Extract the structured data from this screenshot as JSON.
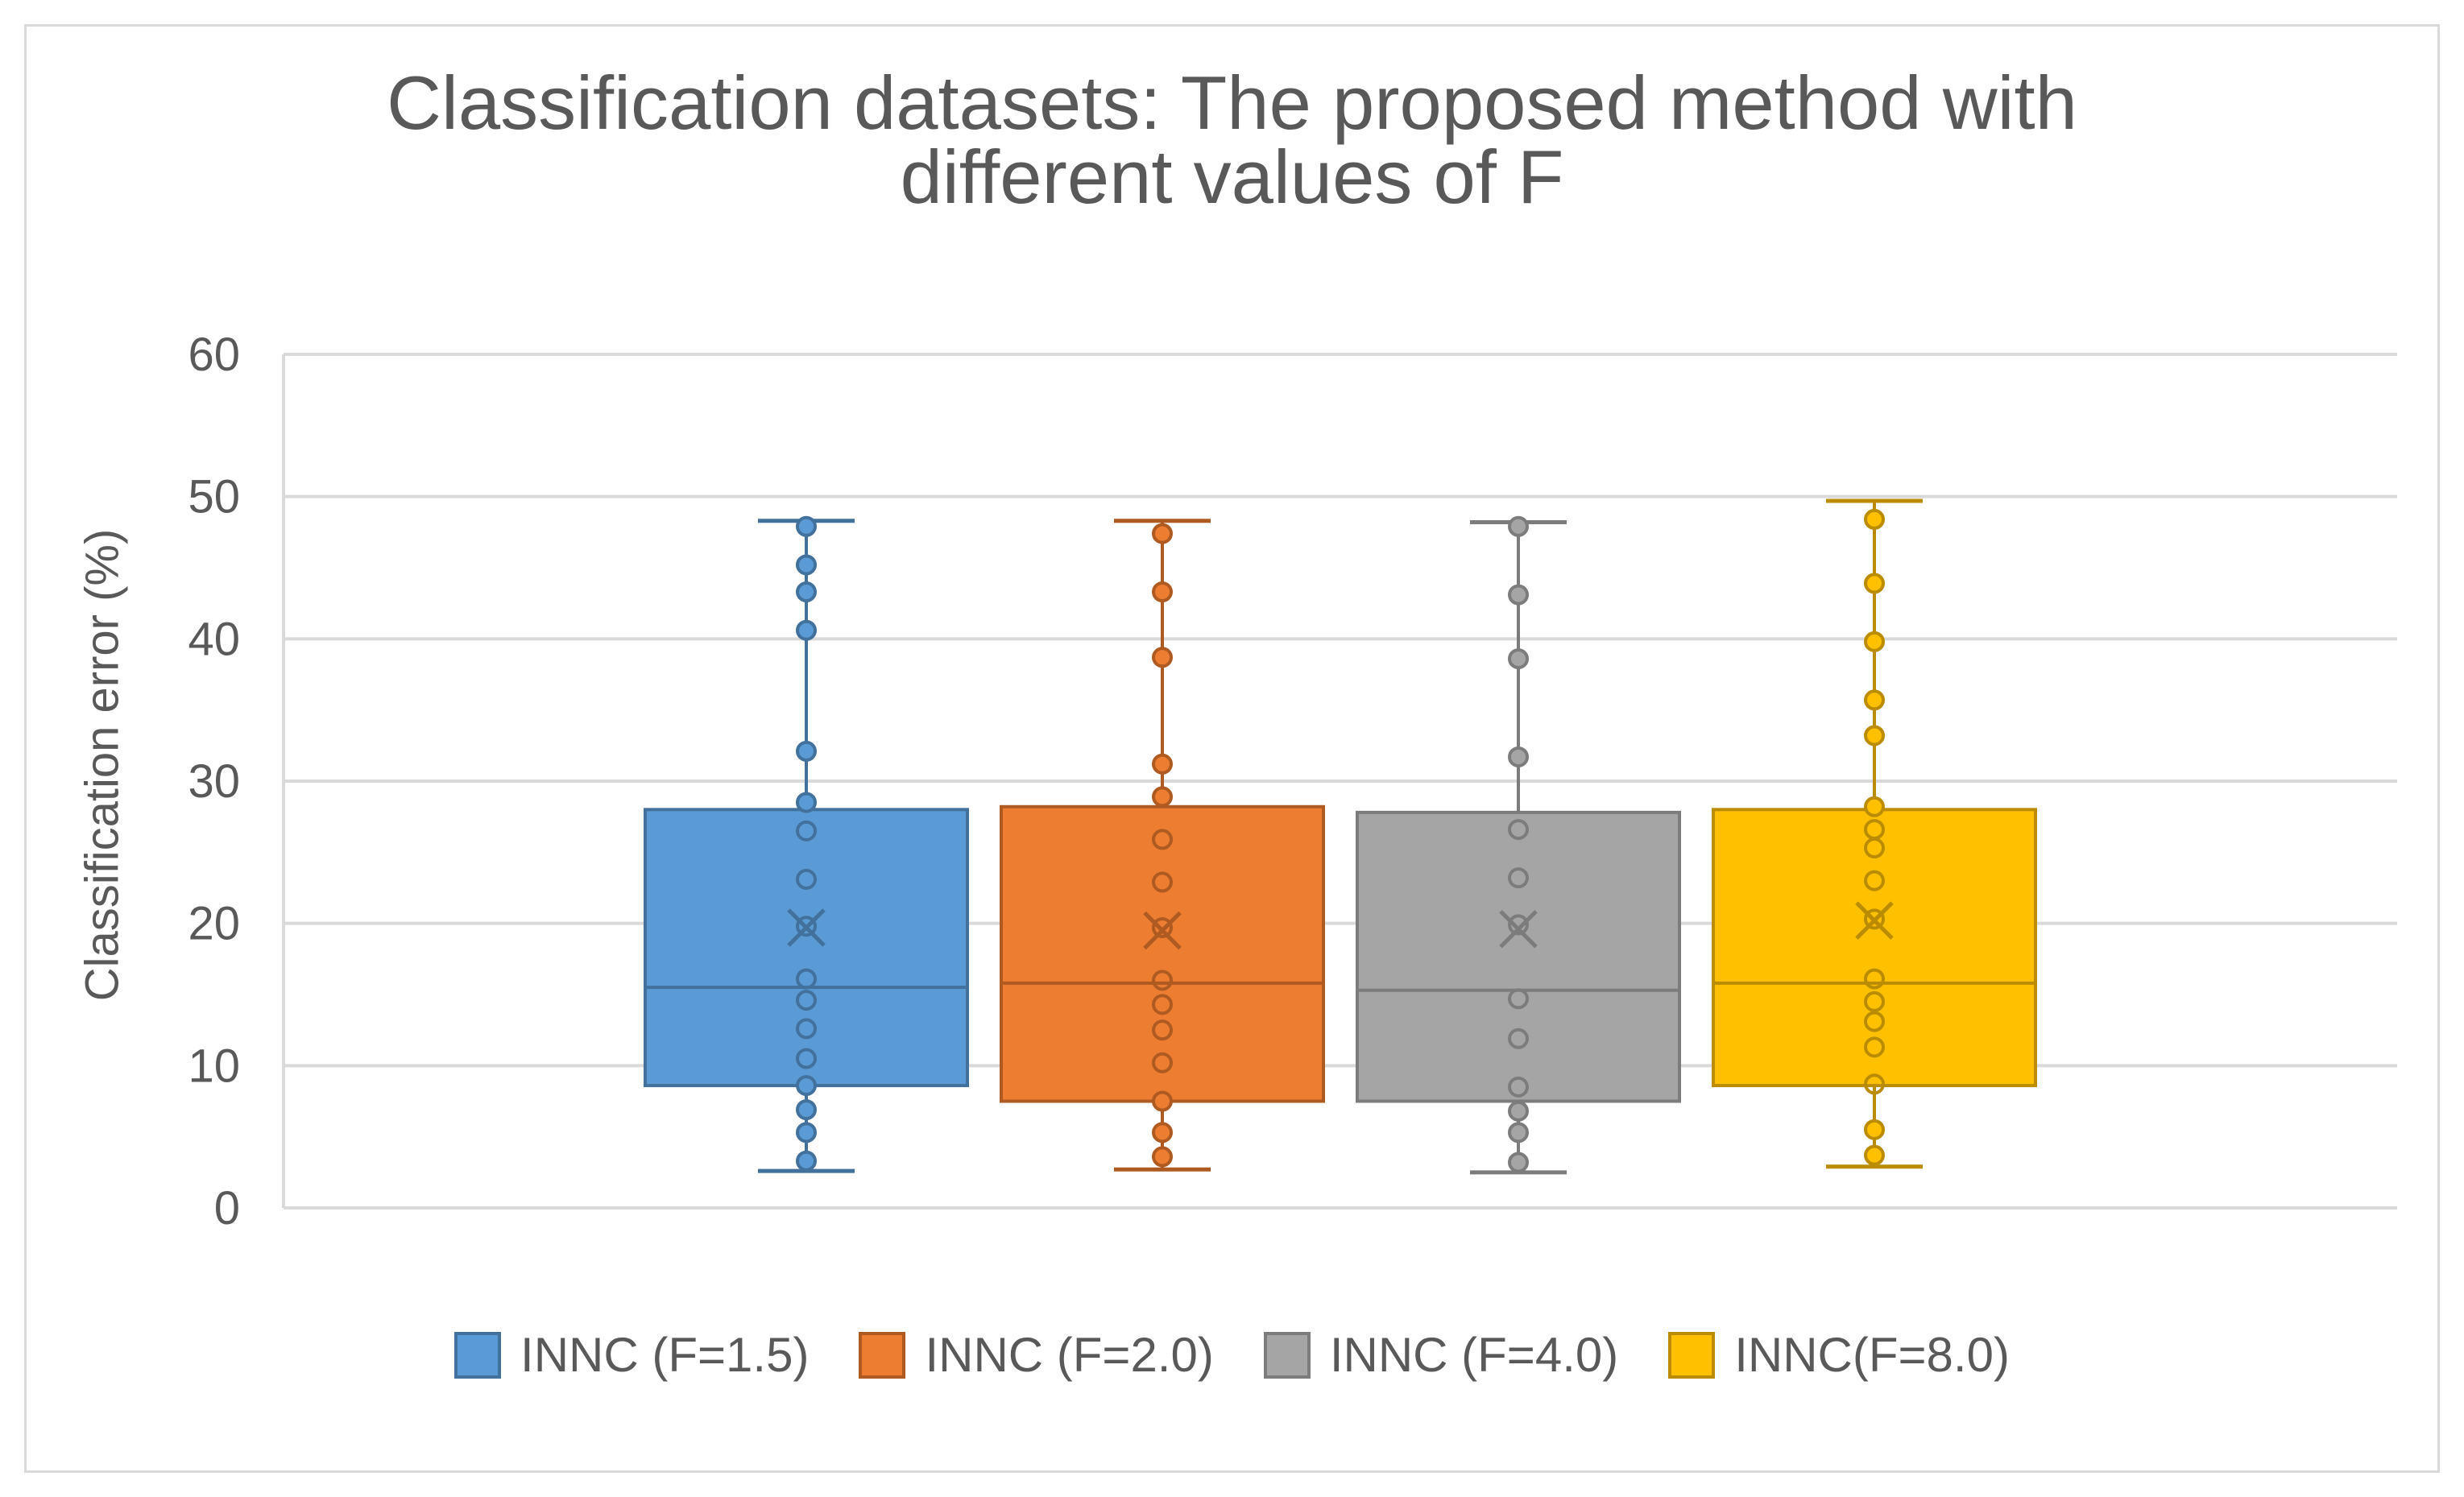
{
  "chart_data": {
    "type": "box",
    "title": "Classification datasets: The proposed method with different values of F",
    "title_lines": [
      "Classification datasets: The proposed method with",
      "different values of F"
    ],
    "xlabel": "",
    "ylabel": "Classification error (%)",
    "ylim": [
      0,
      60
    ],
    "yticks": [
      0,
      10,
      20,
      30,
      40,
      50,
      60
    ],
    "grid": true,
    "legend_position": "bottom",
    "series": [
      {
        "name": "INNC (F=1.5)",
        "color": "#5b9bd5",
        "edge": "#41719c",
        "min": 2.6,
        "q1": 8.6,
        "median": 15.5,
        "q3": 28.0,
        "max": 48.3,
        "mean": 19.7,
        "points": [
          3.3,
          5.3,
          6.9,
          8.6,
          10.5,
          12.6,
          14.6,
          16.1,
          19.8,
          23.1,
          26.5,
          28.5,
          32.1,
          40.6,
          43.3,
          45.2,
          47.9
        ]
      },
      {
        "name": "INNC (F=2.0)",
        "color": "#ed7d31",
        "edge": "#ae5a21",
        "min": 2.7,
        "q1": 7.5,
        "median": 15.8,
        "q3": 28.2,
        "max": 48.3,
        "mean": 19.5,
        "points": [
          3.6,
          5.3,
          7.5,
          10.2,
          12.5,
          14.3,
          16.0,
          19.7,
          22.9,
          25.9,
          28.9,
          31.2,
          38.7,
          43.3,
          47.4
        ]
      },
      {
        "name": "INNC (F=4.0)",
        "color": "#a5a5a5",
        "edge": "#7c7c7c",
        "min": 2.5,
        "q1": 7.5,
        "median": 15.3,
        "q3": 27.8,
        "max": 48.2,
        "mean": 19.6,
        "points": [
          3.2,
          5.3,
          6.8,
          8.5,
          11.9,
          14.7,
          19.9,
          23.2,
          26.6,
          31.7,
          38.6,
          43.1,
          47.9
        ]
      },
      {
        "name": "INNC(F=8.0)",
        "color": "#ffc000",
        "edge": "#bc8c00",
        "min": 2.9,
        "q1": 8.6,
        "median": 15.8,
        "q3": 28.0,
        "max": 49.7,
        "mean": 20.2,
        "points": [
          3.7,
          5.5,
          8.7,
          11.3,
          13.1,
          14.5,
          16.1,
          20.3,
          23.0,
          25.3,
          26.6,
          28.2,
          33.2,
          35.7,
          39.8,
          43.9,
          48.4
        ]
      }
    ]
  }
}
